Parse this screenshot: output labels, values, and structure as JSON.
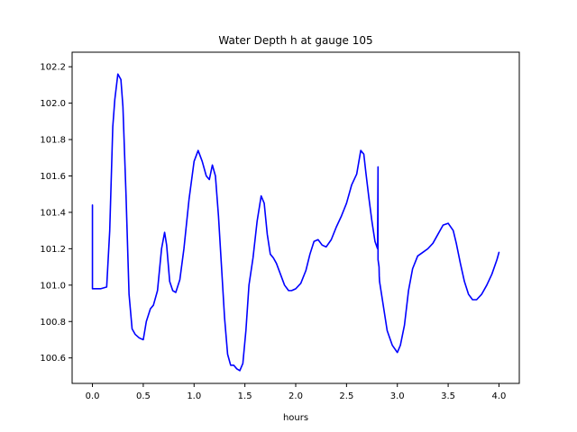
{
  "chart_data": {
    "type": "line",
    "title": "Water Depth h at gauge 105",
    "xlabel": "hours",
    "ylabel": "",
    "xlim": [
      -0.2,
      4.2
    ],
    "ylim": [
      100.46,
      102.28
    ],
    "xticks": [
      0.0,
      0.5,
      1.0,
      1.5,
      2.0,
      2.5,
      3.0,
      3.5,
      4.0
    ],
    "xtick_labels": [
      "0.0",
      "0.5",
      "1.0",
      "1.5",
      "2.0",
      "2.5",
      "3.0",
      "3.5",
      "4.0"
    ],
    "yticks": [
      100.6,
      100.8,
      101.0,
      101.2,
      101.4,
      101.6,
      101.8,
      102.0,
      102.2
    ],
    "ytick_labels": [
      "100.6",
      "100.8",
      "101.0",
      "101.2",
      "101.4",
      "101.6",
      "101.8",
      "102.0",
      "102.2"
    ],
    "grid": false,
    "series": [
      {
        "color": "#0000ff",
        "x": [
          0.0,
          0.0,
          0.02,
          0.08,
          0.14,
          0.17,
          0.2,
          0.22,
          0.25,
          0.28,
          0.3,
          0.33,
          0.36,
          0.39,
          0.42,
          0.46,
          0.5,
          0.53,
          0.57,
          0.6,
          0.64,
          0.68,
          0.71,
          0.73,
          0.76,
          0.79,
          0.82,
          0.86,
          0.9,
          0.95,
          1.0,
          1.04,
          1.08,
          1.12,
          1.15,
          1.18,
          1.21,
          1.24,
          1.27,
          1.3,
          1.33,
          1.36,
          1.39,
          1.42,
          1.45,
          1.48,
          1.51,
          1.54,
          1.58,
          1.62,
          1.66,
          1.69,
          1.72,
          1.75,
          1.78,
          1.81,
          1.85,
          1.89,
          1.93,
          1.96,
          2.0,
          2.05,
          2.1,
          2.14,
          2.18,
          2.22,
          2.26,
          2.3,
          2.35,
          2.4,
          2.45,
          2.5,
          2.55,
          2.6,
          2.64,
          2.67,
          2.69,
          2.72,
          2.75,
          2.78,
          2.805,
          2.81,
          2.81,
          2.82,
          2.822,
          2.825,
          2.85,
          2.9,
          2.95,
          3.0,
          3.03,
          3.07,
          3.11,
          3.15,
          3.2,
          3.25,
          3.3,
          3.35,
          3.4,
          3.45,
          3.5,
          3.55,
          3.58,
          3.62,
          3.66,
          3.7,
          3.74,
          3.78,
          3.83,
          3.88,
          3.93,
          3.98,
          4.0
        ],
        "y": [
          101.44,
          100.98,
          100.98,
          100.98,
          100.99,
          101.3,
          101.87,
          102.02,
          102.16,
          102.13,
          101.98,
          101.5,
          100.95,
          100.76,
          100.73,
          100.71,
          100.7,
          100.8,
          100.87,
          100.89,
          100.97,
          101.2,
          101.29,
          101.22,
          101.02,
          100.97,
          100.96,
          101.03,
          101.2,
          101.47,
          101.68,
          101.74,
          101.68,
          101.6,
          101.58,
          101.66,
          101.6,
          101.38,
          101.1,
          100.82,
          100.62,
          100.56,
          100.56,
          100.54,
          100.53,
          100.57,
          100.75,
          101.0,
          101.15,
          101.35,
          101.49,
          101.45,
          101.28,
          101.17,
          101.15,
          101.12,
          101.06,
          101.0,
          100.97,
          100.97,
          100.98,
          101.01,
          101.08,
          101.17,
          101.24,
          101.25,
          101.22,
          101.21,
          101.25,
          101.32,
          101.38,
          101.45,
          101.55,
          101.61,
          101.74,
          101.72,
          101.62,
          101.48,
          101.35,
          101.24,
          101.2,
          101.65,
          101.14,
          101.1,
          101.05,
          101.02,
          100.93,
          100.75,
          100.67,
          100.63,
          100.67,
          100.78,
          100.97,
          101.09,
          101.16,
          101.18,
          101.2,
          101.23,
          101.28,
          101.33,
          101.34,
          101.3,
          101.23,
          101.12,
          101.02,
          100.95,
          100.92,
          100.92,
          100.95,
          101.0,
          101.06,
          101.14,
          101.18
        ]
      }
    ]
  }
}
